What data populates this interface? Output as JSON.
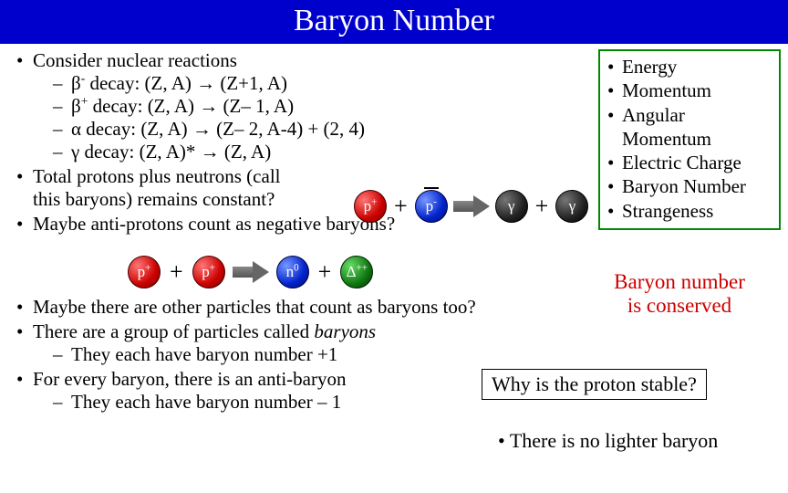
{
  "title": "Baryon Number",
  "section1": {
    "heading": "Consider nuclear reactions",
    "decays": [
      {
        "sym": "β",
        "sup": "-",
        "rest": " decay: (Z, A) → (Z+1, A)"
      },
      {
        "sym": "β",
        "sup": "+",
        "rest": " decay: (Z, A) → (Z– 1, A)"
      },
      {
        "sym": "α",
        "sup": "",
        "rest": " decay: (Z, A) → (Z– 2, A-4) + (2, 4)"
      },
      {
        "sym": "γ",
        "sup": "",
        "rest": " decay: (Z, A)* → (Z, A)"
      }
    ],
    "b2a": "Total protons plus neutrons (call",
    "b2b": "this baryons) remains constant?",
    "b3": "Maybe anti-protons count as negative baryons?"
  },
  "conserved": {
    "items": [
      "Energy",
      "Momentum",
      "Angular Momentum",
      "Electric Charge",
      "Baryon Number",
      "Strangeness"
    ]
  },
  "eq1": {
    "p1": {
      "label": "p",
      "sup": "+",
      "color": "red",
      "bar": false
    },
    "p2": {
      "label": "p",
      "sup": "-",
      "color": "blue",
      "bar": true
    },
    "r1": {
      "label": "γ",
      "sup": "",
      "color": "dark",
      "bar": false
    },
    "r2": {
      "label": "γ",
      "sup": "",
      "color": "dark",
      "bar": false
    }
  },
  "eq2": {
    "p1": {
      "label": "p",
      "sup": "+",
      "color": "red",
      "bar": false
    },
    "p2": {
      "label": "p",
      "sup": "+",
      "color": "red",
      "bar": false
    },
    "r1": {
      "label": "n",
      "sup": "0",
      "color": "blue",
      "bar": false
    },
    "r2": {
      "label": "Δ",
      "sup": "++",
      "color": "green",
      "bar": false
    }
  },
  "section2": {
    "b1": "Maybe there are other particles that count as baryons too?",
    "b2": "There are a group of particles called ",
    "b2ital": "baryons",
    "b2s1": "They each have baryon number +1",
    "b3": "For every baryon, there is an anti-baryon",
    "b3s1": "They each have baryon number – 1"
  },
  "bnbox": {
    "l1": "Baryon number",
    "l2": "is conserved"
  },
  "whybox": "Why is the proton stable?",
  "last": "There is no lighter baryon",
  "colors": {
    "title_bg": "#0000cc",
    "cons_border": "#008800",
    "bn_text": "#cc0000"
  }
}
